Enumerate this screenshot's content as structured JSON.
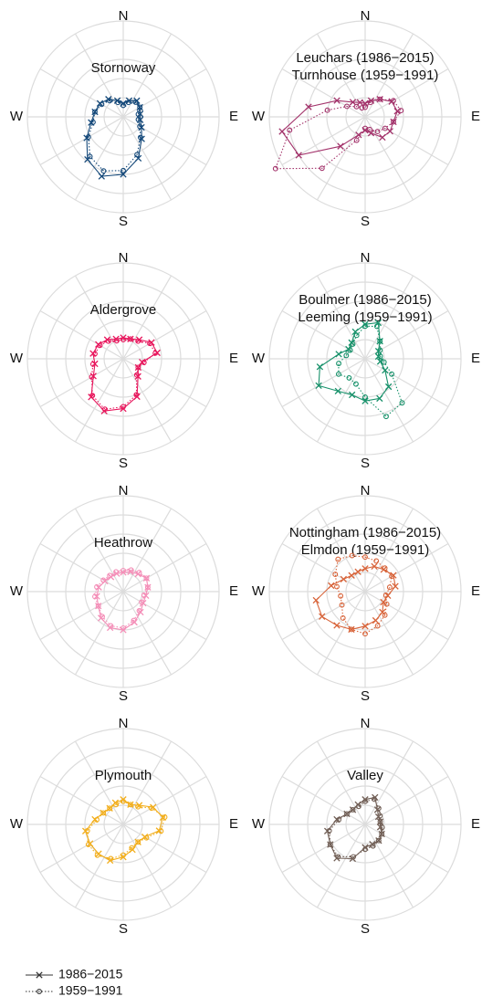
{
  "legend": {
    "entries": [
      {
        "name": "1986−2015",
        "marker": "x",
        "dash": "solid"
      },
      {
        "name": "1959−1991",
        "marker": "o",
        "dash": "dotted"
      }
    ]
  },
  "chart_data": [
    {
      "type": "polar",
      "title": [
        "Stornoway"
      ],
      "angle_labels": [
        {
          "value": 0,
          "label": "N"
        },
        {
          "value": 90,
          "label": "E"
        },
        {
          "value": 180,
          "label": "S"
        },
        {
          "value": 270,
          "label": "W"
        }
      ],
      "ylim": [
        0,
        5
      ],
      "yticks": [
        1,
        2,
        3,
        4,
        5
      ],
      "x": [
        0,
        20,
        40,
        60,
        80,
        100,
        120,
        140,
        160,
        180,
        200,
        220,
        240,
        260,
        280,
        300,
        320,
        340
      ],
      "series": [
        {
          "color": "#15497a",
          "values": [
            0.7,
            0.9,
            1.1,
            1.0,
            0.9,
            0.9,
            1.1,
            1.5,
            2.3,
            3.0,
            3.3,
            2.9,
            2.2,
            1.7,
            1.5,
            1.4,
            1.2,
            0.9
          ]
        },
        {
          "color": "#15497a",
          "values": [
            0.6,
            0.8,
            1.0,
            1.0,
            0.8,
            0.8,
            1.0,
            1.4,
            2.1,
            2.8,
            3.0,
            2.7,
            2.1,
            1.6,
            1.5,
            1.3,
            1.1,
            0.8
          ]
        }
      ]
    },
    {
      "type": "polar",
      "title": [
        "Leuchars (1986−2015)",
        "Turnhouse (1959−1991)"
      ],
      "angle_labels": [
        {
          "value": 0,
          "label": "N"
        },
        {
          "value": 90,
          "label": "E"
        },
        {
          "value": 180,
          "label": "S"
        },
        {
          "value": 270,
          "label": "W"
        }
      ],
      "ylim": [
        0,
        5
      ],
      "yticks": [
        1,
        2,
        3,
        4,
        5
      ],
      "x": [
        0,
        20,
        40,
        60,
        80,
        100,
        120,
        140,
        160,
        180,
        200,
        220,
        240,
        260,
        280,
        300,
        320,
        340
      ],
      "series": [
        {
          "color": "#a3336b",
          "values": [
            0.7,
            0.9,
            1.2,
            1.6,
            1.7,
            1.5,
            1.5,
            1.4,
            0.9,
            0.7,
            1.0,
            2.0,
            4.0,
            4.4,
            3.0,
            1.7,
            1.0,
            0.8
          ]
        },
        {
          "color": "#a3336b",
          "values": [
            0.5,
            0.8,
            1.2,
            1.7,
            1.9,
            1.5,
            1.2,
            1.0,
            0.7,
            0.6,
            1.3,
            3.5,
            5.4,
            4.0,
            2.0,
            1.1,
            0.7,
            0.5
          ]
        }
      ]
    },
    {
      "type": "polar",
      "title": [
        "Aldergrove"
      ],
      "angle_labels": [
        {
          "value": 0,
          "label": "N"
        },
        {
          "value": 90,
          "label": "E"
        },
        {
          "value": 180,
          "label": "S"
        },
        {
          "value": 270,
          "label": "W"
        }
      ],
      "ylim": [
        0,
        5
      ],
      "yticks": [
        1,
        2,
        3,
        4,
        5
      ],
      "x": [
        0,
        20,
        40,
        60,
        80,
        100,
        120,
        140,
        160,
        180,
        200,
        220,
        240,
        260,
        280,
        300,
        320,
        340
      ],
      "series": [
        {
          "color": "#e8175d",
          "values": [
            1.1,
            1.1,
            1.3,
            1.7,
            1.8,
            1.0,
            0.9,
            1.2,
            2.1,
            2.6,
            2.9,
            2.6,
            1.8,
            1.5,
            1.6,
            1.5,
            1.3,
            1.1
          ]
        },
        {
          "color": "#e8175d",
          "values": [
            1.0,
            1.1,
            1.2,
            1.6,
            1.7,
            1.1,
            0.9,
            1.1,
            2.0,
            2.5,
            2.8,
            2.5,
            1.9,
            1.6,
            1.5,
            1.4,
            1.2,
            1.0
          ]
        }
      ]
    },
    {
      "type": "polar",
      "title": [
        "Boulmer (1986−2015)",
        "Leeming (1959−1991)"
      ],
      "angle_labels": [
        {
          "value": 0,
          "label": "N"
        },
        {
          "value": 90,
          "label": "E"
        },
        {
          "value": 180,
          "label": "S"
        },
        {
          "value": 270,
          "label": "W"
        }
      ],
      "ylim": [
        0,
        5
      ],
      "yticks": [
        1,
        2,
        3,
        4,
        5
      ],
      "x": [
        0,
        20,
        40,
        60,
        80,
        100,
        120,
        140,
        160,
        180,
        200,
        220,
        240,
        260,
        280,
        300,
        320,
        340
      ],
      "series": [
        {
          "color": "#17916a",
          "values": [
            1.8,
            2.0,
            1.2,
            0.8,
            0.7,
            0.8,
            1.2,
            1.9,
            2.2,
            2.2,
            2.0,
            2.2,
            2.8,
            2.4,
            1.4,
            1.0,
            1.1,
            1.5
          ]
        },
        {
          "color": "#17916a",
          "values": [
            1.7,
            1.8,
            1.2,
            0.9,
            0.8,
            1.0,
            1.6,
            3.0,
            3.2,
            2.0,
            1.4,
            1.3,
            1.6,
            1.4,
            1.0,
            0.9,
            1.0,
            1.3
          ]
        }
      ]
    },
    {
      "type": "polar",
      "title": [
        "Heathrow"
      ],
      "angle_labels": [
        {
          "value": 0,
          "label": "N"
        },
        {
          "value": 90,
          "label": "E"
        },
        {
          "value": 180,
          "label": "S"
        },
        {
          "value": 270,
          "label": "W"
        }
      ],
      "ylim": [
        0,
        5
      ],
      "yticks": [
        1,
        2,
        3,
        4,
        5
      ],
      "x": [
        0,
        20,
        40,
        60,
        80,
        100,
        120,
        140,
        160,
        180,
        200,
        220,
        240,
        260,
        280,
        300,
        320,
        340
      ],
      "series": [
        {
          "color": "#f48fb8",
          "values": [
            1.0,
            1.1,
            1.2,
            1.4,
            1.3,
            1.2,
            1.2,
            1.4,
            1.7,
            2.0,
            2.0,
            1.8,
            1.5,
            1.4,
            1.3,
            1.1,
            1.0,
            1.0
          ]
        },
        {
          "color": "#f48fb8",
          "values": [
            1.1,
            1.2,
            1.3,
            1.4,
            1.3,
            1.1,
            1.1,
            1.3,
            1.6,
            1.9,
            1.9,
            1.7,
            1.5,
            1.5,
            1.4,
            1.2,
            1.1,
            1.1
          ]
        }
      ]
    },
    {
      "type": "polar",
      "title": [
        "Nottingham (1986−2015)",
        "Elmdon (1959−1991)"
      ],
      "angle_labels": [
        {
          "value": 0,
          "label": "N"
        },
        {
          "value": 90,
          "label": "E"
        },
        {
          "value": 180,
          "label": "S"
        },
        {
          "value": 270,
          "label": "W"
        }
      ],
      "ylim": [
        0,
        5
      ],
      "yticks": [
        1,
        2,
        3,
        4,
        5
      ],
      "x": [
        0,
        20,
        40,
        60,
        80,
        100,
        120,
        140,
        160,
        180,
        200,
        220,
        240,
        260,
        280,
        300,
        320,
        340
      ],
      "series": [
        {
          "color": "#d8643a",
          "values": [
            1.2,
            1.4,
            1.5,
            1.7,
            1.6,
            1.2,
            1.1,
            1.4,
            1.6,
            1.8,
            2.1,
            2.3,
            2.6,
            2.6,
            1.8,
            1.3,
            1.1,
            1.1
          ]
        },
        {
          "color": "#d8643a",
          "values": [
            1.8,
            1.7,
            1.6,
            1.6,
            1.3,
            1.1,
            1.3,
            1.6,
            1.9,
            2.2,
            2.1,
            1.8,
            1.4,
            1.3,
            1.5,
            1.8,
            2.2,
            2.0
          ]
        }
      ]
    },
    {
      "type": "polar",
      "title": [
        "Plymouth"
      ],
      "angle_labels": [
        {
          "value": 0,
          "label": "N"
        },
        {
          "value": 90,
          "label": "E"
        },
        {
          "value": 180,
          "label": "S"
        },
        {
          "value": 270,
          "label": "W"
        }
      ],
      "ylim": [
        0,
        5
      ],
      "yticks": [
        1,
        2,
        3,
        4,
        5
      ],
      "x": [
        0,
        20,
        40,
        60,
        80,
        100,
        120,
        140,
        160,
        180,
        200,
        220,
        240,
        260,
        280,
        300,
        320,
        340
      ],
      "series": [
        {
          "color": "#f2ae1c",
          "values": [
            1.3,
            1.1,
            1.3,
            1.8,
            2.1,
            1.9,
            1.3,
            1.2,
            1.4,
            1.7,
            2.0,
            2.0,
            2.0,
            2.0,
            1.5,
            1.2,
            1.1,
            1.2
          ]
        },
        {
          "color": "#f2ae1c",
          "values": [
            1.2,
            1.1,
            1.2,
            1.7,
            2.2,
            2.0,
            1.4,
            1.2,
            1.3,
            1.6,
            1.9,
            2.1,
            2.1,
            1.9,
            1.4,
            1.2,
            1.1,
            1.1
          ]
        }
      ]
    },
    {
      "type": "polar",
      "title": [
        "Valley"
      ],
      "angle_labels": [
        {
          "value": 0,
          "label": "N"
        },
        {
          "value": 90,
          "label": "E"
        },
        {
          "value": 180,
          "label": "S"
        },
        {
          "value": 270,
          "label": "W"
        }
      ],
      "ylim": [
        0,
        5
      ],
      "yticks": [
        1,
        2,
        3,
        4,
        5
      ],
      "x": [
        0,
        20,
        40,
        60,
        80,
        100,
        120,
        140,
        160,
        180,
        200,
        220,
        240,
        260,
        280,
        300,
        320,
        340
      ],
      "series": [
        {
          "color": "#705e55",
          "values": [
            1.3,
            1.5,
            1.0,
            0.8,
            0.8,
            0.8,
            1.0,
            1.1,
            1.1,
            1.2,
            1.9,
            2.3,
            2.1,
            2.0,
            1.5,
            1.1,
            1.0,
            1.1
          ]
        },
        {
          "color": "#705e55",
          "values": [
            1.2,
            1.4,
            1.1,
            0.9,
            0.8,
            0.9,
            1.0,
            1.1,
            1.2,
            1.3,
            1.8,
            2.2,
            2.1,
            1.9,
            1.4,
            1.1,
            1.0,
            1.0
          ]
        }
      ]
    }
  ]
}
